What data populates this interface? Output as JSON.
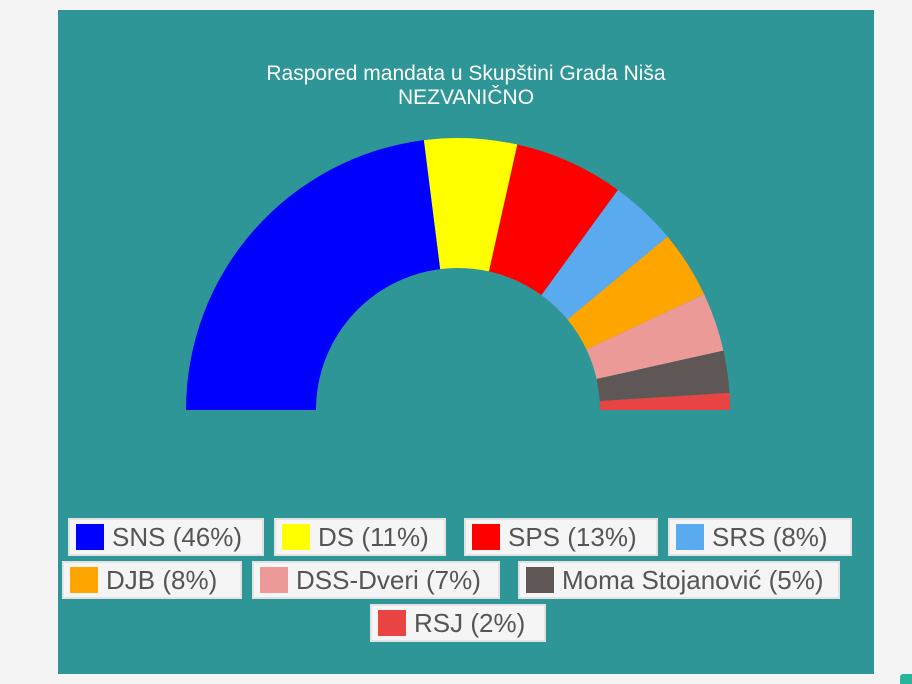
{
  "chart_data": {
    "type": "pie",
    "subtype": "semicircle",
    "title": "Raspored mandata u Skupštini Grada Niša",
    "subtitle": "NEZVANIČNO",
    "series": [
      {
        "name": "SNS",
        "value": 46,
        "label": "SNS (46%)",
        "color": "#0000ff"
      },
      {
        "name": "DS",
        "value": 11,
        "label": "DS (11%)",
        "color": "#ffff00"
      },
      {
        "name": "SPS",
        "value": 13,
        "label": "SPS (13%)",
        "color": "#ff0000"
      },
      {
        "name": "SRS",
        "value": 8,
        "label": "SRS (8%)",
        "color": "#5aaaf0"
      },
      {
        "name": "DJB",
        "value": 8,
        "label": "DJB (8%)",
        "color": "#ffa500"
      },
      {
        "name": "DSS-Dveri",
        "value": 7,
        "label": "DSS-Dveri (7%)",
        "color": "#ec9a98"
      },
      {
        "name": "Moma Stojanović",
        "value": 5,
        "label": "Moma Stojanović (5%)",
        "color": "#5f5656"
      },
      {
        "name": "RSJ",
        "value": 2,
        "label": "RSJ (2%)",
        "color": "#e84444"
      }
    ],
    "legend_position": "bottom",
    "background": "#2e9696"
  }
}
